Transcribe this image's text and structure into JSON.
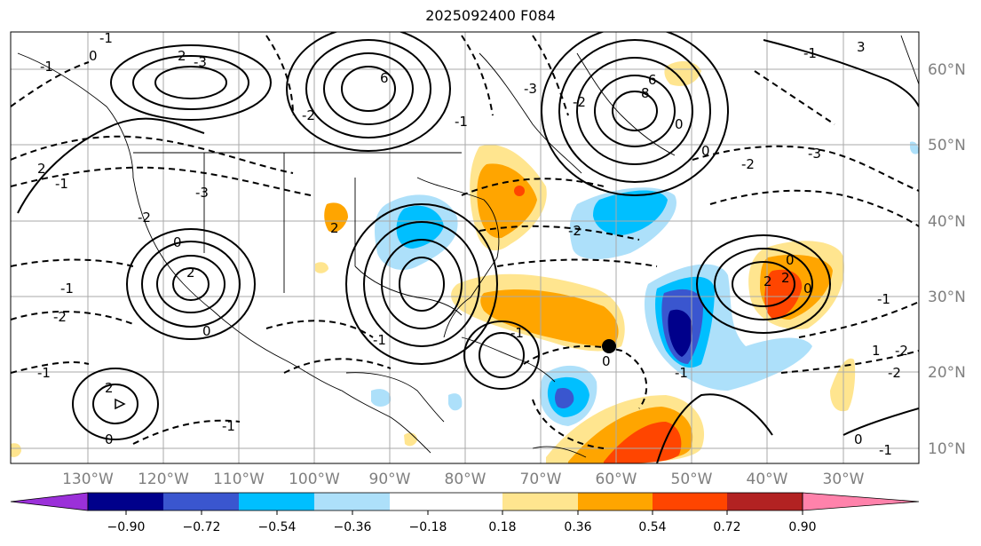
{
  "title": "2025092400 F084",
  "map": {
    "lon_labels": [
      "130°W",
      "120°W",
      "110°W",
      "100°W",
      "90°W",
      "80°W",
      "70°W",
      "60°W",
      "50°W",
      "40°W",
      "30°W"
    ],
    "lat_labels": [
      "60°N",
      "50°N",
      "40°N",
      "30°N",
      "20°N",
      "10°N"
    ],
    "contour_labels": [
      "0",
      "-1",
      "-3",
      "2",
      "-1",
      "6",
      "-2",
      "-1",
      "-3",
      "-2",
      "6",
      "8",
      "-1",
      "3",
      "0",
      "-2",
      "-3",
      "0",
      "2",
      "-3",
      "-2",
      "-1",
      "-1",
      "0",
      "-2",
      "-1",
      "0",
      "2",
      "2",
      "-1",
      "0",
      "-2",
      "-1",
      "0",
      "2",
      "2",
      "0",
      "-2",
      "-1",
      "1",
      "-1",
      "-2",
      "0",
      "2",
      "-1",
      "0",
      "-1"
    ],
    "marker": "storm-center"
  },
  "colorbar": {
    "ticks": [
      "−0.90",
      "−0.72",
      "−0.54",
      "−0.36",
      "−0.18",
      "0.18",
      "0.36",
      "0.54",
      "0.72",
      "0.90"
    ],
    "colors": [
      "#9b30d9",
      "#00008b",
      "#3a56cf",
      "#00bfff",
      "#ade0fa",
      "#ffffff",
      "#ffe58f",
      "#ffa500",
      "#ff4500",
      "#b22222",
      "#ff82ab"
    ]
  }
}
